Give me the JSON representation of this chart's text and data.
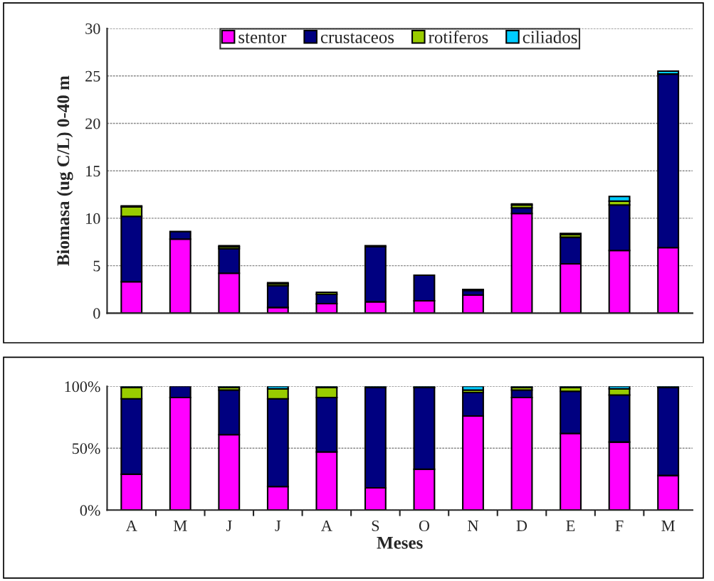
{
  "chart_data": [
    {
      "type": "bar",
      "stacked": true,
      "ylabel": "Biomasa (ug C/L) 0-40 m",
      "categories": [
        null,
        null,
        null,
        null,
        null,
        null,
        null,
        null,
        null,
        null,
        null,
        null
      ],
      "ylim": [
        0,
        30
      ],
      "yticks": [
        0,
        5,
        10,
        15,
        20,
        25,
        30
      ],
      "grid": "y",
      "legend": "top",
      "series": [
        {
          "name": "stentor",
          "color": "#ff00ff",
          "values": [
            3.3,
            7.8,
            4.2,
            0.6,
            1.0,
            1.2,
            1.3,
            1.9,
            10.5,
            5.2,
            6.6,
            6.9
          ]
        },
        {
          "name": "crustaceos",
          "color": "#000080",
          "values": [
            6.9,
            0.8,
            2.6,
            2.3,
            1.0,
            5.8,
            2.7,
            0.5,
            0.6,
            2.8,
            4.8,
            18.3
          ]
        },
        {
          "name": "rotiferos",
          "color": "#99cc00",
          "values": [
            1.0,
            0,
            0.2,
            0.2,
            0.2,
            0,
            0,
            null,
            0.3,
            0.3,
            0.4,
            0
          ]
        },
        {
          "name": "ciliados",
          "color": "#00ccff",
          "values": [
            0.1,
            0,
            0.1,
            0.1,
            0,
            0.1,
            0,
            0.1,
            0.1,
            0.1,
            0.5,
            0.3
          ]
        }
      ]
    },
    {
      "type": "bar",
      "stacked": true,
      "xlabel": "Meses",
      "categories": [
        "A",
        "M",
        "J",
        "J",
        "A",
        "S",
        "O",
        "N",
        "D",
        "E",
        "F",
        "M"
      ],
      "ylim": [
        0,
        100
      ],
      "yticks": [
        {
          "value": 0,
          "label": "0%"
        },
        {
          "value": 50,
          "label": "50%"
        },
        {
          "value": 100,
          "label": "100%"
        }
      ],
      "grid": "y",
      "series": [
        {
          "color": "#ff00ff",
          "values": [
            29,
            91,
            61,
            19,
            47,
            18,
            33,
            76,
            91,
            62,
            55,
            28
          ]
        },
        {
          "color": "#000080",
          "values": [
            61,
            9,
            36,
            71,
            44,
            81,
            66,
            19,
            6,
            34,
            38,
            71
          ]
        },
        {
          "color": "#99cc00",
          "values": [
            9,
            0,
            2,
            8,
            8,
            0,
            0,
            2,
            2,
            3,
            5,
            0
          ]
        },
        {
          "color": "#00ccff",
          "values": [
            1,
            0,
            1,
            2,
            1,
            1,
            1,
            3,
            1,
            1,
            2,
            1
          ]
        }
      ]
    }
  ]
}
